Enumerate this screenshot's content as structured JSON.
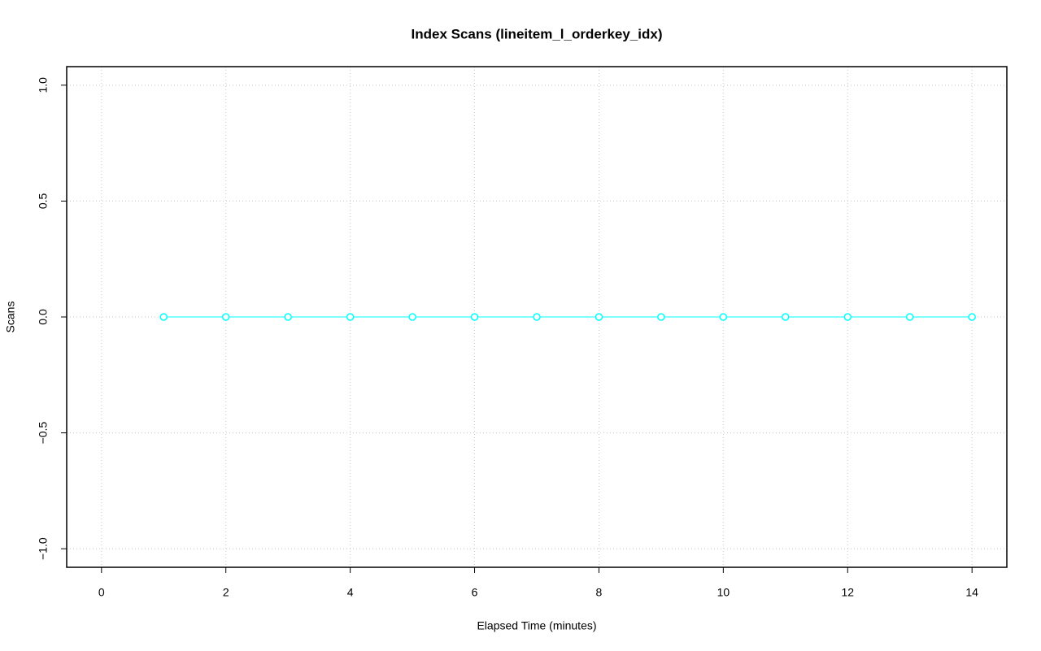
{
  "chart_data": {
    "type": "line",
    "title": "Index Scans (lineitem_l_orderkey_idx)",
    "x_label": "Elapsed Time (minutes)",
    "y_label": "Scans",
    "x": [
      1,
      2,
      3,
      4,
      5,
      6,
      7,
      8,
      9,
      10,
      11,
      12,
      13,
      14
    ],
    "series": [
      {
        "color": "#00ffff",
        "values": [
          0,
          0,
          0,
          0,
          0,
          0,
          0,
          0,
          0,
          0,
          0,
          0,
          0,
          0
        ]
      }
    ],
    "xlim": [
      -0.56,
      14.56
    ],
    "xticks": [
      0,
      2,
      4,
      6,
      8,
      10,
      12,
      14
    ],
    "ylim": [
      -1.08,
      1.08
    ],
    "yticks": [
      {
        "value": -1,
        "label": "−1.0"
      },
      {
        "value": -0.5,
        "label": "−0.5"
      },
      {
        "value": 0,
        "label": "0.0"
      },
      0.5,
      {
        "value": 1,
        "label": "1.0"
      }
    ],
    "grid": true
  }
}
